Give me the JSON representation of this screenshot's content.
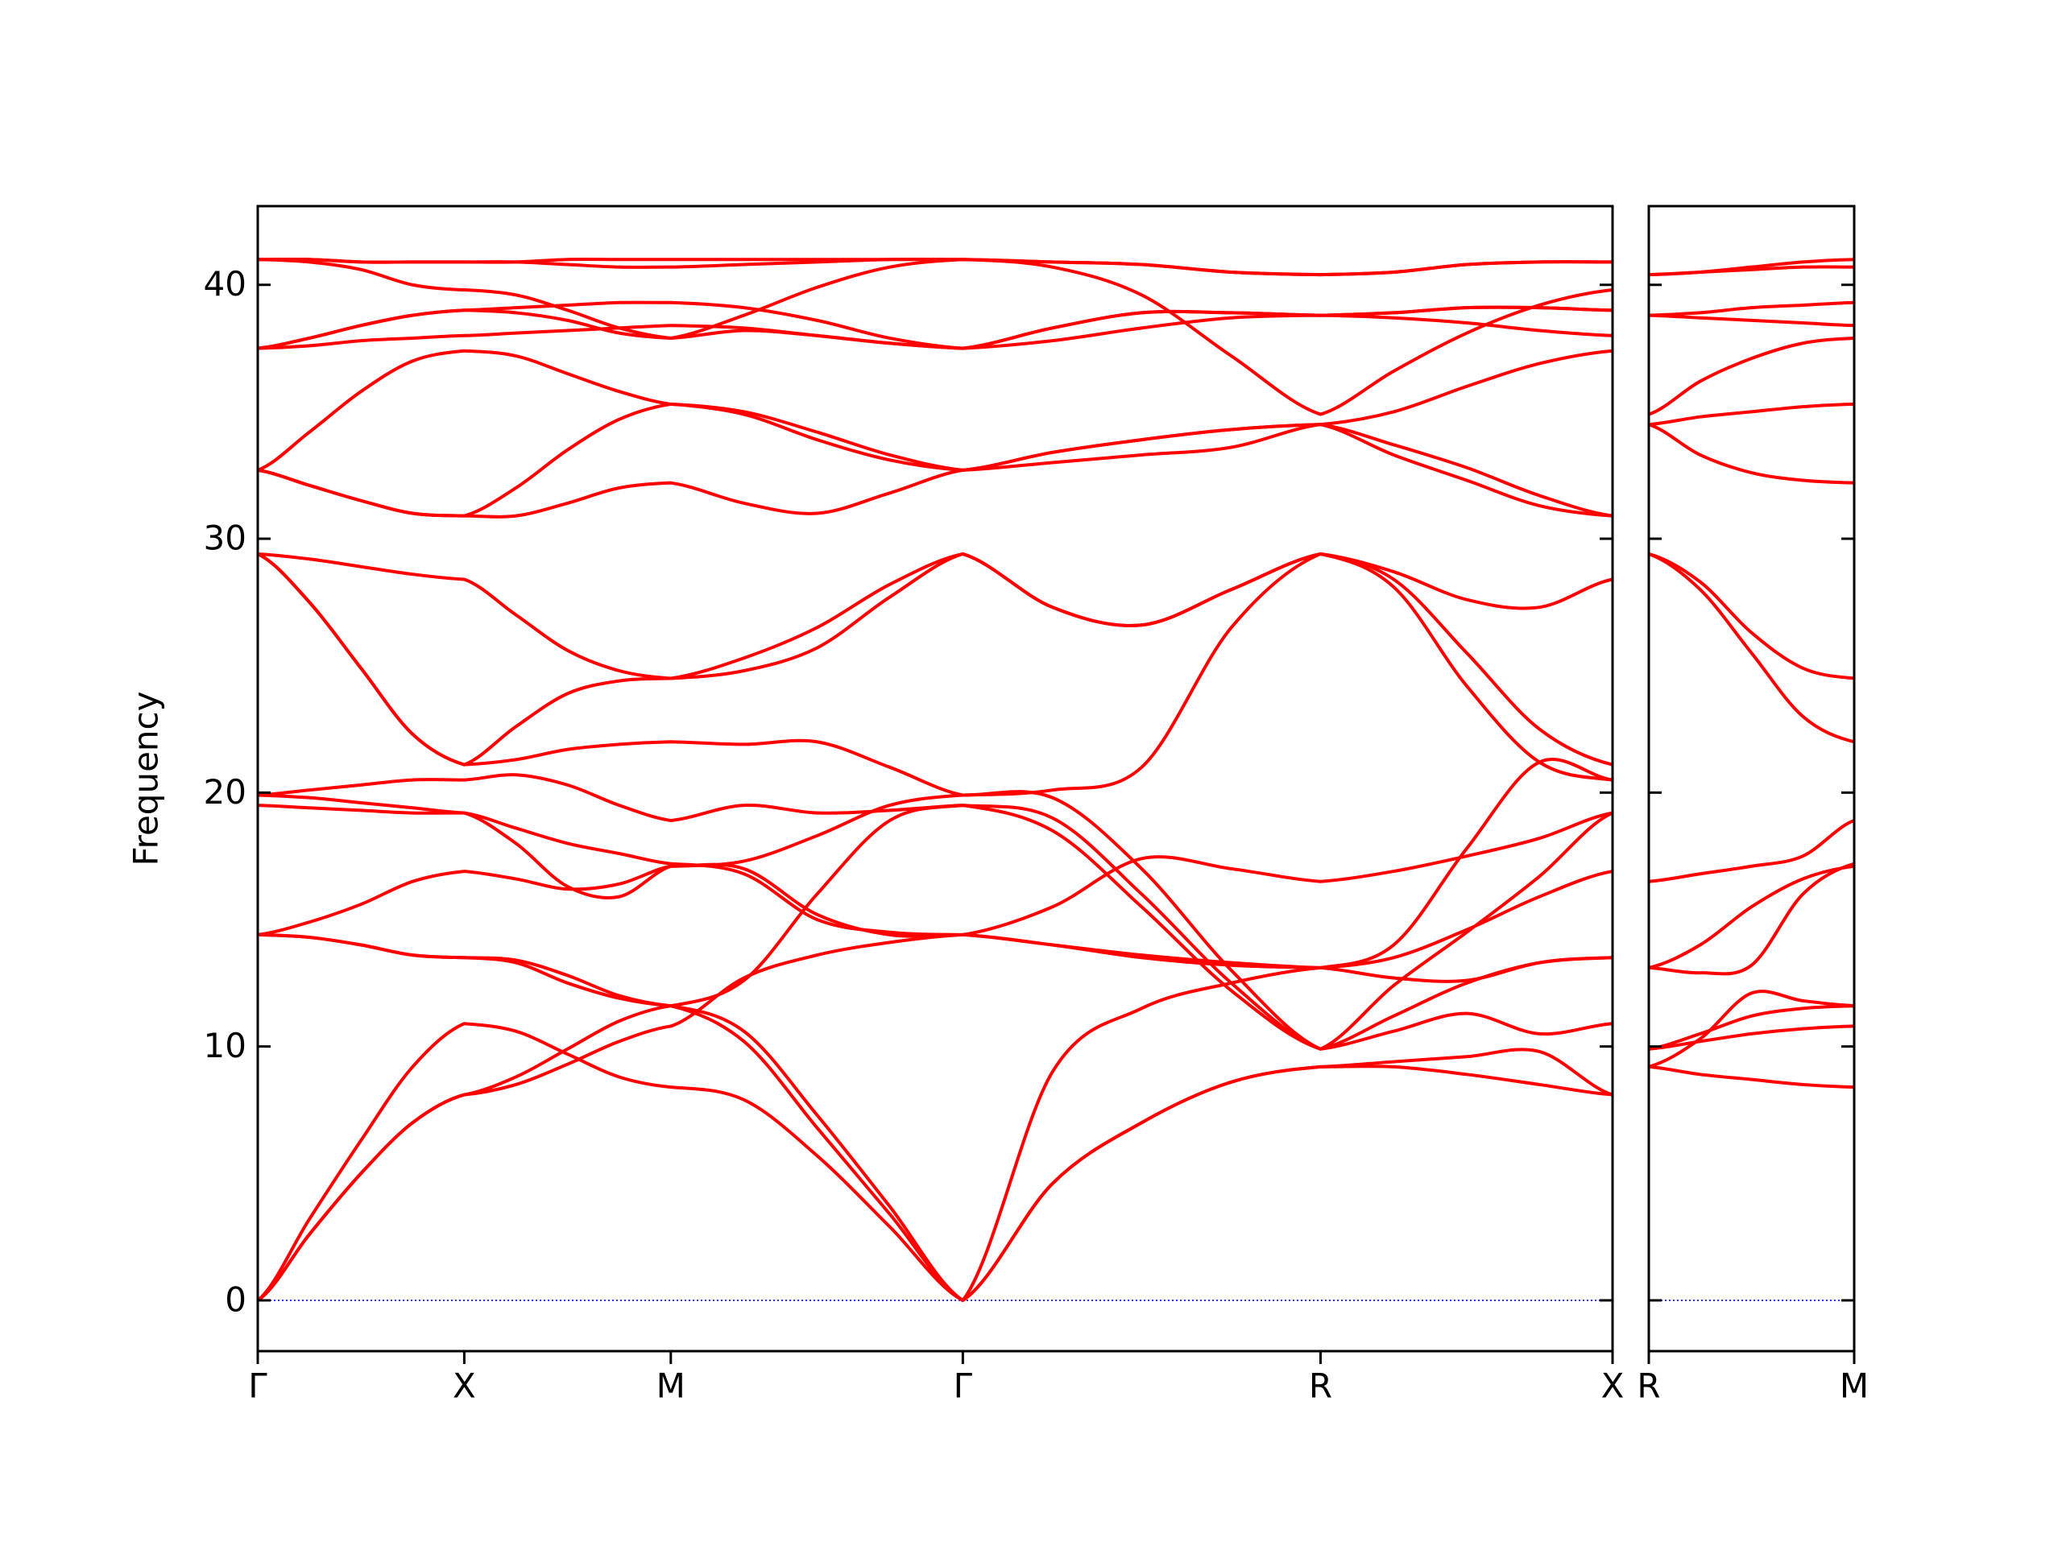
{
  "chart_data": [
    {
      "type": "line",
      "ylabel": "Frequency",
      "color": "#ff0000",
      "xlim": [
        0,
        3.28
      ],
      "ylim": [
        -2,
        43.1
      ],
      "yticks": [
        0,
        10,
        20,
        30,
        40
      ],
      "show_ytick_labels": true,
      "xticks": [
        {
          "value": 0,
          "label": "Γ"
        },
        {
          "value": 0.5,
          "label": "X"
        },
        {
          "value": 1.0,
          "label": "M"
        },
        {
          "value": 1.707,
          "label": "Γ"
        },
        {
          "value": 2.573,
          "label": "R"
        },
        {
          "value": 3.28,
          "label": "X"
        }
      ],
      "hline": 0,
      "hline_color": "#0000ff",
      "x": [
        0,
        0.125,
        0.25,
        0.375,
        0.5,
        0.625,
        0.75,
        0.875,
        1.0,
        1.177,
        1.354,
        1.53,
        1.707,
        1.924,
        2.14,
        2.357,
        2.573,
        2.75,
        2.927,
        3.103,
        3.28
      ],
      "series": [
        {
          "values": [
            0,
            2.6,
            5.0,
            7.0,
            8.1,
            8.5,
            9.3,
            10.2,
            10.8,
            12.7,
            13.6,
            14.1,
            14.4,
            14.0,
            13.6,
            13.3,
            13.1,
            12.7,
            12.6,
            13.3,
            13.5
          ]
        },
        {
          "values": [
            0,
            2.6,
            5.0,
            7.0,
            8.1,
            8.8,
            9.9,
            11.0,
            11.6,
            10.2,
            6.8,
            3.4,
            0,
            4.6,
            7.0,
            8.6,
            9.2,
            9.4,
            9.6,
            9.8,
            8.1
          ]
        },
        {
          "values": [
            0,
            3.2,
            6.3,
            9.2,
            10.9,
            10.6,
            9.7,
            8.8,
            8.4,
            7.9,
            5.7,
            2.9,
            0,
            9.0,
            11.5,
            12.5,
            13.1,
            14.0,
            17.8,
            21.2,
            20.5
          ]
        },
        {
          "values": [
            14.4,
            14.3,
            14.0,
            13.6,
            13.5,
            13.4,
            12.8,
            12.0,
            11.6,
            10.6,
            7.3,
            3.7,
            0,
            4.6,
            7.0,
            8.6,
            9.2,
            9.2,
            8.9,
            8.5,
            8.1
          ]
        },
        {
          "values": [
            14.4,
            14.3,
            14.0,
            13.6,
            13.5,
            13.3,
            12.5,
            11.9,
            11.6,
            12.6,
            16.0,
            18.9,
            19.5,
            18.5,
            15.5,
            12.2,
            9.9,
            10.6,
            11.3,
            10.5,
            10.9
          ]
        },
        {
          "values": [
            14.4,
            14.9,
            15.6,
            16.5,
            16.9,
            16.6,
            16.2,
            16.4,
            17.1,
            17.3,
            18.3,
            19.5,
            19.9,
            20.1,
            21.0,
            26.5,
            29.4,
            28.4,
            25.5,
            22.5,
            21.1
          ]
        },
        {
          "values": [
            19.5,
            19.4,
            19.3,
            19.2,
            19.2,
            18.0,
            16.3,
            15.9,
            17.1,
            17.0,
            15.2,
            14.4,
            14.4,
            15.5,
            17.4,
            17.0,
            16.5,
            16.9,
            17.5,
            18.2,
            19.2
          ]
        },
        {
          "values": [
            19.9,
            19.8,
            19.6,
            19.4,
            19.2,
            18.6,
            18.0,
            17.6,
            17.2,
            16.8,
            15.0,
            14.5,
            14.4,
            14.0,
            13.5,
            13.2,
            13.1,
            13.5,
            14.6,
            15.9,
            16.9
          ]
        },
        {
          "values": [
            19.9,
            20.1,
            20.3,
            20.5,
            20.5,
            20.7,
            20.3,
            19.5,
            18.9,
            19.5,
            19.2,
            19.3,
            19.5,
            19.0,
            16.0,
            12.5,
            9.9,
            11.2,
            12.5,
            13.3,
            13.5
          ]
        },
        {
          "values": [
            29.4,
            27.5,
            24.9,
            22.3,
            21.1,
            22.6,
            23.9,
            24.4,
            24.5,
            25.3,
            26.5,
            28.2,
            29.4,
            27.3,
            26.6,
            28.0,
            29.4,
            28.7,
            27.6,
            27.3,
            28.4
          ]
        },
        {
          "values": [
            29.4,
            27.5,
            24.9,
            22.3,
            21.1,
            21.3,
            21.7,
            21.9,
            22.0,
            21.9,
            22.0,
            21.0,
            19.9,
            19.8,
            17.0,
            13.0,
            9.9,
            12.4,
            14.5,
            16.7,
            19.2
          ]
        },
        {
          "values": [
            29.4,
            29.2,
            28.9,
            28.6,
            28.4,
            27.0,
            25.6,
            24.8,
            24.5,
            24.8,
            25.7,
            27.7,
            29.4,
            27.3,
            26.6,
            28.0,
            29.4,
            28.1,
            24.2,
            21.2,
            20.5
          ]
        },
        {
          "values": [
            32.7,
            32.1,
            31.5,
            31.0,
            30.9,
            32.0,
            33.5,
            34.7,
            35.3,
            35.0,
            34.2,
            33.3,
            32.7,
            33.0,
            33.3,
            33.6,
            34.5,
            33.3,
            32.3,
            31.3,
            30.9
          ]
        },
        {
          "values": [
            32.7,
            32.1,
            31.5,
            31.0,
            30.9,
            30.9,
            31.4,
            32.0,
            32.2,
            31.4,
            31.0,
            31.8,
            32.7,
            33.4,
            33.9,
            34.3,
            34.5,
            33.7,
            32.8,
            31.7,
            30.9
          ]
        },
        {
          "values": [
            32.7,
            34.2,
            35.8,
            37.0,
            37.4,
            37.2,
            36.5,
            35.8,
            35.3,
            34.9,
            33.9,
            33.1,
            32.7,
            33.4,
            33.9,
            34.3,
            34.5,
            35.0,
            36.0,
            36.9,
            37.4
          ]
        },
        {
          "values": [
            37.5,
            37.6,
            37.8,
            37.9,
            38.0,
            38.1,
            38.2,
            38.3,
            38.4,
            38.3,
            38.0,
            37.7,
            37.5,
            37.8,
            38.3,
            38.7,
            38.8,
            38.7,
            38.5,
            38.2,
            38.0
          ]
        },
        {
          "values": [
            37.5,
            37.9,
            38.4,
            38.8,
            39.0,
            39.1,
            39.2,
            39.3,
            39.3,
            39.1,
            38.6,
            37.9,
            37.5,
            38.3,
            38.9,
            38.9,
            38.8,
            38.9,
            39.1,
            39.1,
            39.0
          ]
        },
        {
          "values": [
            37.5,
            37.9,
            38.4,
            38.8,
            39.0,
            38.9,
            38.6,
            38.1,
            37.9,
            38.8,
            39.9,
            40.7,
            41.0,
            40.7,
            39.6,
            37.2,
            34.9,
            36.6,
            38.1,
            39.2,
            39.8
          ]
        },
        {
          "values": [
            41.0,
            40.9,
            40.6,
            40.0,
            39.8,
            39.6,
            39.0,
            38.3,
            37.9,
            38.2,
            38.0,
            37.7,
            37.5,
            38.3,
            38.9,
            38.9,
            38.8,
            38.9,
            39.1,
            39.1,
            39.0
          ]
        },
        {
          "values": [
            41.0,
            41.0,
            40.9,
            40.9,
            40.9,
            40.9,
            40.8,
            40.7,
            40.7,
            40.8,
            40.9,
            41.0,
            41.0,
            40.9,
            40.8,
            40.5,
            40.4,
            40.5,
            40.8,
            40.9,
            40.9
          ]
        },
        {
          "values": [
            41.0,
            41.0,
            40.9,
            40.9,
            40.9,
            40.9,
            41.0,
            41.0,
            41.0,
            41.0,
            41.0,
            41.0,
            41.0,
            40.9,
            40.8,
            40.5,
            40.4,
            40.5,
            40.8,
            40.9,
            40.9
          ]
        }
      ]
    },
    {
      "type": "line",
      "color": "#ff0000",
      "xlim": [
        0,
        0.5
      ],
      "ylim": [
        -2,
        43.1
      ],
      "yticks": [
        0,
        10,
        20,
        30,
        40
      ],
      "show_ytick_labels": false,
      "xticks": [
        {
          "value": 0,
          "label": "R"
        },
        {
          "value": 0.5,
          "label": "M"
        }
      ],
      "hline": 0,
      "hline_color": "#0000ff",
      "x": [
        0,
        0.125,
        0.25,
        0.375,
        0.5
      ],
      "series": [
        {
          "values": [
            9.2,
            8.9,
            8.7,
            8.5,
            8.4
          ]
        },
        {
          "values": [
            9.9,
            10.2,
            10.5,
            10.7,
            10.8
          ]
        },
        {
          "values": [
            9.9,
            10.5,
            11.2,
            11.5,
            11.6
          ]
        },
        {
          "values": [
            9.2,
            10.3,
            12.1,
            11.8,
            11.6
          ]
        },
        {
          "values": [
            13.1,
            12.9,
            13.2,
            16.0,
            17.2
          ]
        },
        {
          "values": [
            13.1,
            14.0,
            15.5,
            16.6,
            17.1
          ]
        },
        {
          "values": [
            16.5,
            16.8,
            17.1,
            17.5,
            18.9
          ]
        },
        {
          "values": [
            29.4,
            28.3,
            26.3,
            24.9,
            24.5
          ]
        },
        {
          "values": [
            29.4,
            28.0,
            25.5,
            23.0,
            22.0
          ]
        },
        {
          "values": [
            34.5,
            33.3,
            32.6,
            32.3,
            32.2
          ]
        },
        {
          "values": [
            34.5,
            34.8,
            35.0,
            35.2,
            35.3
          ]
        },
        {
          "values": [
            34.9,
            36.2,
            37.1,
            37.7,
            37.9
          ]
        },
        {
          "values": [
            38.8,
            38.7,
            38.6,
            38.5,
            38.4
          ]
        },
        {
          "values": [
            38.8,
            38.9,
            39.1,
            39.2,
            39.3
          ]
        },
        {
          "values": [
            40.4,
            40.5,
            40.6,
            40.7,
            40.7
          ]
        },
        {
          "values": [
            40.4,
            40.5,
            40.7,
            40.9,
            41.0
          ]
        }
      ]
    }
  ]
}
